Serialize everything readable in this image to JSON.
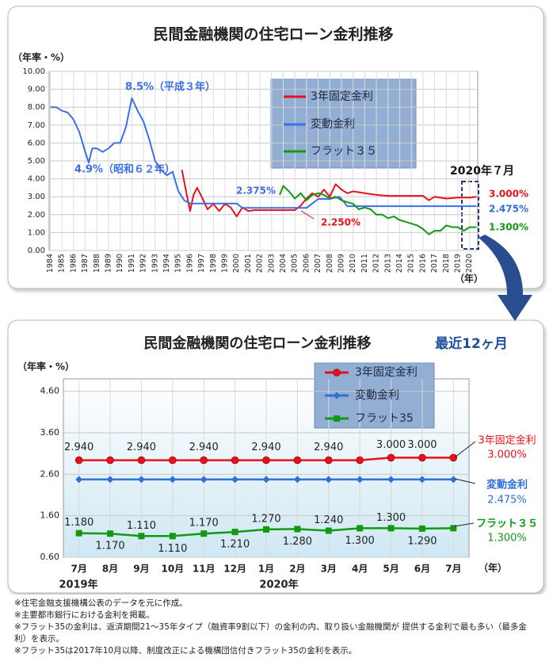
{
  "chart_data": [
    {
      "type": "line",
      "title": "民間金融機関の住宅ローン金利推移",
      "y_label": "（年率・%）",
      "x_label": "（年）",
      "xlim": [
        1983.9,
        2020.7
      ],
      "xticks": [
        1984,
        1985,
        1986,
        1987,
        1988,
        1989,
        1990,
        1991,
        1992,
        1993,
        1994,
        1995,
        1996,
        1997,
        1998,
        1999,
        2000,
        2001,
        2002,
        2003,
        2004,
        2005,
        2006,
        2007,
        2008,
        2009,
        2010,
        2011,
        2012,
        2013,
        2014,
        2015,
        2016,
        2017,
        2018,
        2019,
        2020
      ],
      "ylim": [
        0,
        10
      ],
      "yticks": [
        {
          "value": 0,
          "label": "0.00"
        },
        {
          "value": 1,
          "label": "1.00"
        },
        {
          "value": 2,
          "label": "2.00"
        },
        {
          "value": 3,
          "label": "3.00"
        },
        {
          "value": 4,
          "label": "4.00"
        },
        {
          "value": 5,
          "label": "5.00"
        },
        {
          "value": 6,
          "label": "6.00"
        },
        {
          "value": 7,
          "label": "7.00"
        },
        {
          "value": 8,
          "label": "8.00"
        },
        {
          "value": 9,
          "label": "9.00"
        },
        {
          "value": 10,
          "label": "10.00"
        }
      ],
      "grid": true,
      "series": [
        {
          "name": "3年固定金利",
          "color": "#e8111a",
          "x": [
            1995.3,
            1995.6,
            1996,
            1996.3,
            1996.6,
            1997,
            1997.5,
            1998,
            1998.5,
            1999,
            1999.5,
            2000,
            2000.5,
            2001,
            2001.5,
            2005,
            2005.5,
            2006,
            2006.5,
            2007,
            2007.5,
            2008,
            2008.5,
            2009,
            2009.5,
            2010,
            2011,
            2012,
            2013,
            2015,
            2016,
            2016.5,
            2017,
            2018,
            2019,
            2020,
            2020.6
          ],
          "values": [
            4.5,
            3.5,
            2.2,
            3.1,
            3.5,
            3.0,
            2.3,
            2.6,
            2.2,
            2.6,
            2.4,
            1.9,
            2.4,
            2.2,
            2.25,
            2.25,
            2.5,
            2.9,
            3.2,
            3.0,
            3.4,
            3.0,
            3.7,
            3.4,
            3.2,
            3.3,
            3.2,
            3.1,
            3.05,
            3.05,
            3.05,
            2.8,
            3.0,
            2.9,
            2.95,
            2.95,
            3.0
          ]
        },
        {
          "name": "変動金利",
          "color": "#3a6fe8",
          "x": [
            1984,
            1984.5,
            1985,
            1985.5,
            1986,
            1986.5,
            1987,
            1987.3,
            1987.6,
            1988,
            1988.5,
            1989,
            1989.5,
            1990,
            1990.5,
            1991,
            1991.5,
            1992,
            1992.5,
            1993,
            1993.5,
            1994,
            1994.5,
            1995,
            1995.5,
            1996,
            2000,
            2000.5,
            2001,
            2006,
            2006.5,
            2007,
            2008,
            2008.8,
            2009,
            2009.5,
            2020.6
          ],
          "values": [
            8.0,
            8.0,
            7.8,
            7.7,
            7.3,
            6.6,
            5.5,
            4.9,
            5.7,
            5.7,
            5.5,
            5.7,
            6.0,
            6.0,
            6.9,
            8.5,
            7.8,
            7.2,
            6.2,
            5.0,
            4.5,
            4.2,
            4.4,
            3.3,
            2.8,
            2.625,
            2.625,
            2.375,
            2.375,
            2.375,
            2.625,
            2.875,
            2.875,
            3.0,
            2.875,
            2.475,
            2.475
          ]
        },
        {
          "name": "フラット３５",
          "color": "#119a11",
          "x": [
            2003.7,
            2004,
            2004.5,
            2005,
            2005.5,
            2006,
            2006.5,
            2007,
            2007.5,
            2008,
            2008.5,
            2009,
            2010,
            2010.5,
            2011,
            2011.5,
            2012,
            2012.5,
            2013,
            2013.5,
            2014,
            2014.5,
            2015,
            2015.5,
            2016,
            2016.5,
            2017,
            2017.5,
            2018,
            2018.5,
            2019,
            2019.5,
            2020,
            2020.6
          ],
          "values": [
            3.1,
            3.6,
            3.3,
            2.9,
            3.2,
            2.8,
            3.1,
            3.2,
            3.1,
            2.9,
            3.0,
            2.8,
            2.6,
            2.3,
            2.4,
            2.3,
            2.0,
            2.0,
            1.8,
            1.9,
            1.7,
            1.6,
            1.5,
            1.4,
            1.2,
            0.9,
            1.1,
            1.1,
            1.4,
            1.3,
            1.3,
            1.1,
            1.3,
            1.3
          ]
        }
      ],
      "annotations": [
        "8.5%（平成３年）",
        "4.9%（昭和６２年）",
        "2.375%",
        "2.250%",
        "2020年７月",
        "3.000%",
        "2.475%",
        "1.300%"
      ]
    },
    {
      "type": "line",
      "title": "民間金融機関の住宅ローン金利推移",
      "subtitle": "最近12ヶ月",
      "y_label": "（年率・%）",
      "x_label": "（年）",
      "categories": [
        "7月",
        "8月",
        "9月",
        "10月",
        "11月",
        "12月",
        "1月",
        "2月",
        "3月",
        "4月",
        "5月",
        "6月",
        "7月"
      ],
      "period_labels": [
        "2019年",
        "2020年"
      ],
      "ylim": [
        0.6,
        4.9
      ],
      "yticks": [
        {
          "value": 0.6,
          "label": "0.60"
        },
        {
          "value": 1.6,
          "label": "1.60"
        },
        {
          "value": 2.6,
          "label": "2.60"
        },
        {
          "value": 3.6,
          "label": "3.60"
        },
        {
          "value": 4.6,
          "label": "4.60"
        }
      ],
      "grid": true,
      "series": [
        {
          "name": "3年固定金利",
          "color": "#e8111a",
          "marker": "circle",
          "values": [
            2.94,
            2.94,
            2.94,
            2.94,
            2.94,
            2.94,
            2.94,
            2.94,
            2.94,
            2.94,
            3.0,
            3.0,
            3.0
          ],
          "value_labels": [
            "2.940",
            null,
            "2.940",
            null,
            "2.940",
            null,
            "2.940",
            null,
            "2.940",
            null,
            "3.000",
            "3.000",
            null
          ]
        },
        {
          "name": "変動金利",
          "color": "#2f6fd8",
          "marker": "diamond",
          "values": [
            2.475,
            2.475,
            2.475,
            2.475,
            2.475,
            2.475,
            2.475,
            2.475,
            2.475,
            2.475,
            2.475,
            2.475,
            2.475
          ]
        },
        {
          "name": "フラット35",
          "color": "#119a11",
          "marker": "square",
          "values": [
            1.18,
            1.17,
            1.11,
            1.11,
            1.17,
            1.21,
            1.27,
            1.28,
            1.24,
            1.3,
            1.3,
            1.29,
            1.3
          ],
          "value_labels": [
            "1.180",
            "1.170",
            "1.110",
            "1.110",
            "1.170",
            "1.210",
            "1.270",
            "1.280",
            "1.240",
            "1.300",
            "1.300",
            "1.290",
            null
          ]
        }
      ],
      "annotations": [
        "3年固定金利",
        "3.000%",
        "変動金利",
        "2.475%",
        "フラット３５",
        "1.300%"
      ]
    }
  ],
  "notes": [
    "※住宅金融支援機構公表のデータを元に作成。",
    "※主要都市銀行における金利を掲載。",
    "※フラット35の金利は、返済期間21～35年タイプ（融資率9割以下）の金利の内、取り扱い金融機関が 提供する金利で最も多い（最多金利）を表示。",
    "※フラット35は2017年10月以降、制度改正による機構団信付きフラット35の金利を表示。"
  ]
}
